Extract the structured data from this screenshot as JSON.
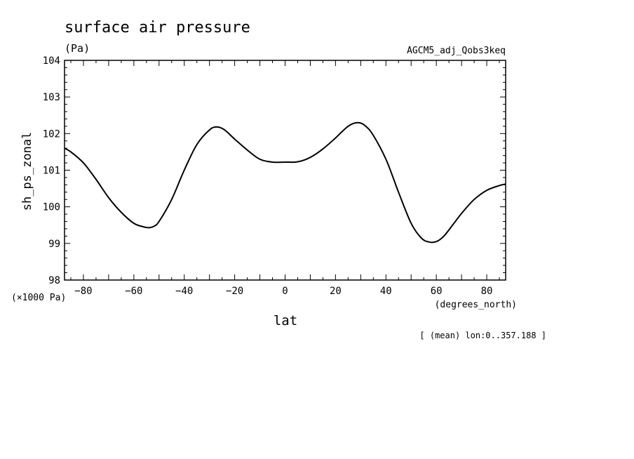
{
  "chart_data": {
    "type": "line",
    "title": "surface air pressure",
    "units": "(Pa)",
    "dataset": "AGCM5_adj_Qobs3keq",
    "ylabel": "sh_ps_zonal",
    "xlabel": "lat",
    "y_scale_note": "(×1000 Pa)",
    "x_units": "(degrees_north)",
    "footnote": "[ (mean) lon:0..357.188 ]",
    "xlim": [
      -87.5,
      87.5
    ],
    "ylim": [
      98,
      104
    ],
    "x_ticks": [
      -80,
      -60,
      -40,
      -20,
      0,
      20,
      40,
      60,
      80
    ],
    "y_ticks": [
      98,
      99,
      100,
      101,
      102,
      103,
      104
    ],
    "series": [
      {
        "x": [
          -87.5,
          -85,
          -80,
          -75,
          -70,
          -65,
          -60,
          -56,
          -54,
          -52,
          -50,
          -45,
          -40,
          -35,
          -30,
          -27,
          -24,
          -20,
          -15,
          -10,
          -5,
          0,
          5,
          10,
          15,
          20,
          25,
          29,
          32,
          35,
          40,
          45,
          50,
          54,
          57,
          60,
          63,
          67,
          70,
          75,
          80,
          85,
          87.5
        ],
        "y": [
          101.6,
          101.5,
          101.2,
          100.75,
          100.25,
          99.85,
          99.55,
          99.45,
          99.43,
          99.47,
          99.6,
          100.2,
          101.0,
          101.7,
          102.1,
          102.18,
          102.1,
          101.85,
          101.55,
          101.3,
          101.22,
          101.22,
          101.23,
          101.35,
          101.58,
          101.88,
          102.2,
          102.3,
          102.2,
          101.95,
          101.3,
          100.4,
          99.55,
          99.15,
          99.04,
          99.05,
          99.2,
          99.55,
          99.82,
          100.2,
          100.45,
          100.58,
          100.62
        ]
      }
    ]
  }
}
